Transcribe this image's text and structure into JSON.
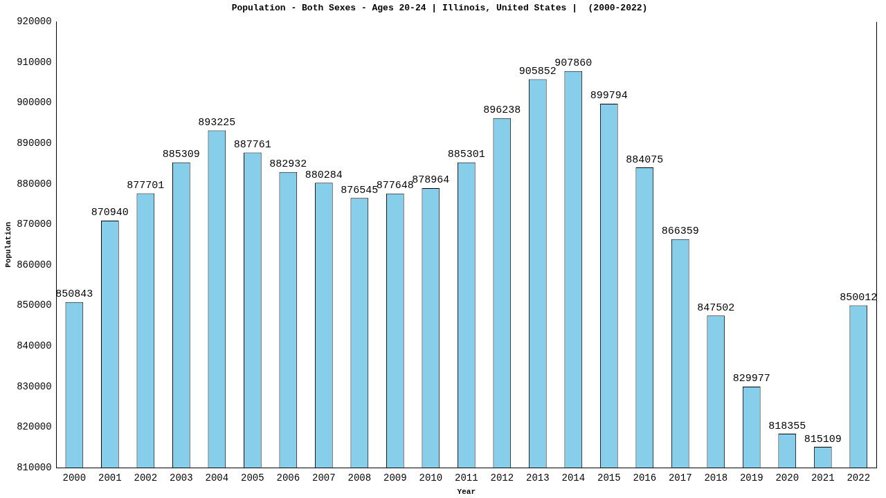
{
  "chart_data": {
    "type": "bar",
    "title": "Population - Both Sexes - Ages 20-24 | Illinois, United States |  (2000-2022)",
    "x_label": "Year",
    "y_label": "Population",
    "categories": [
      "2000",
      "2001",
      "2002",
      "2003",
      "2004",
      "2005",
      "2006",
      "2007",
      "2008",
      "2009",
      "2010",
      "2011",
      "2012",
      "2013",
      "2014",
      "2015",
      "2016",
      "2017",
      "2018",
      "2019",
      "2020",
      "2021",
      "2022"
    ],
    "values": [
      850843,
      870940,
      877701,
      885309,
      893225,
      887761,
      882932,
      880284,
      876545,
      877648,
      878964,
      885301,
      896238,
      905852,
      907860,
      899794,
      884075,
      866359,
      847502,
      829977,
      818355,
      815109,
      850012
    ],
    "color": "#87ceeb",
    "ylim": [
      810000,
      920000
    ],
    "yticks": [
      810000,
      820000,
      830000,
      840000,
      850000,
      860000,
      870000,
      880000,
      890000,
      900000,
      910000,
      920000
    ],
    "grid": false,
    "data_labels": true
  }
}
